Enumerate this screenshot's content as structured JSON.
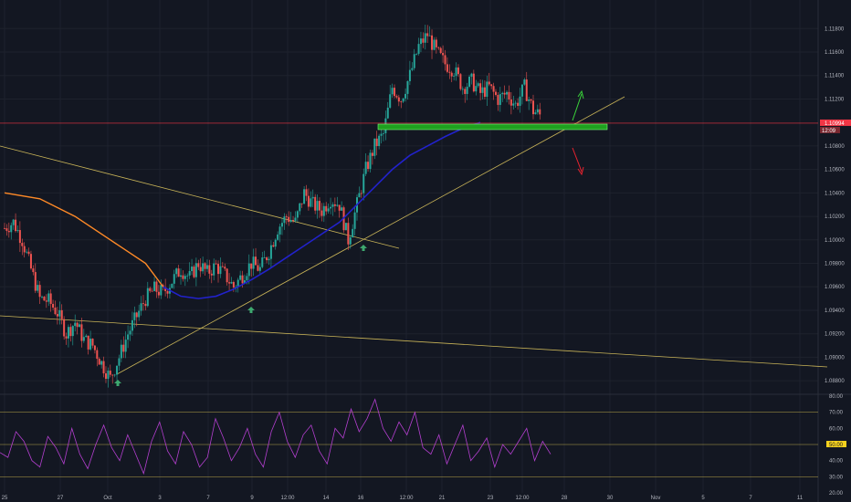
{
  "colors": {
    "background": "#131722",
    "grid": "#1e222d",
    "up_candle": "#26a69a",
    "down_candle": "#ef5350",
    "ma_orange": "#ff8a27",
    "ma_blue": "#2222cc",
    "trendline": "#c9b458",
    "support_zone": "#1fa01f",
    "support_zone_border": "#7cff7c",
    "current_price_line": "#f23645",
    "rsi_line": "#b43fd0",
    "rsi_level_line": "#b9a64a",
    "rsi_mid_badge": "#f5d11e",
    "up_arrow": "#3ad23a",
    "down_arrow": "#e8232f",
    "swing_marker": "#3ea86f"
  },
  "price_axis": {
    "labels": [
      "1.11800",
      "1.11600",
      "1.11400",
      "1.11200",
      "1.10800",
      "1.10600",
      "1.10400",
      "1.10200",
      "1.10000",
      "1.09800",
      "1.09600",
      "1.09400",
      "1.09200",
      "1.09000",
      "1.08800"
    ],
    "current_price": "1.10994",
    "countdown": "12:09"
  },
  "rsi_axis": {
    "labels": [
      "80.00",
      "70.00",
      "60.00",
      "40.00",
      "30.00",
      "20.00"
    ],
    "mid_label": "50.00"
  },
  "time_axis": {
    "labels": [
      "25",
      "27",
      "Oct",
      "3",
      "7",
      "9",
      "12:00",
      "14",
      "16",
      "12:00",
      "21",
      "23",
      "12:00",
      "28",
      "30",
      "Nov",
      "5",
      "7",
      "11"
    ]
  },
  "chart_data": [
    {
      "type": "line",
      "description_note": "",
      "x_unit": "trading day (EURUSD 4h candles, late Sep to mid Oct)",
      "y_axis": {
        "ylim": [
          1.087,
          1.1195
        ],
        "ticks": [
          1.088,
          1.09,
          1.092,
          1.094,
          1.096,
          1.098,
          1.1,
          1.102,
          1.104,
          1.106,
          1.108,
          1.112,
          1.114,
          1.116,
          1.118
        ]
      },
      "series": [
        {
          "style": "candles",
          "x": [
            0,
            0.5,
            1,
            1.5,
            2,
            2.5,
            3,
            3.5,
            4,
            4.5,
            5,
            5.5,
            6,
            6.5,
            7,
            7.5,
            8,
            8.5,
            9,
            9.5,
            10,
            10.5,
            11,
            11.5,
            12,
            12.5,
            13,
            13.5,
            14,
            14.5,
            15,
            15.5,
            16,
            16.5,
            17,
            17.5,
            18,
            18.5,
            19,
            19.5,
            20,
            20.5,
            21,
            21.5,
            22,
            22.5,
            23,
            23.5,
            24,
            24.5
          ],
          "values": [
            1.101,
            1.1015,
            1.1,
            1.0975,
            1.095,
            1.0948,
            1.0938,
            1.092,
            1.093,
            1.0915,
            1.091,
            1.0895,
            1.0882,
            1.09,
            1.092,
            1.0935,
            1.095,
            1.0958,
            1.0955,
            1.0965,
            1.0975,
            1.0968,
            1.098,
            1.0972,
            1.0978,
            1.097,
            1.096,
            1.097,
            1.098,
            1.0975,
            1.099,
            1.101,
            1.102,
            1.1015,
            1.104,
            1.103,
            1.1025,
            1.1035,
            1.103,
            1.1,
            1.103,
            1.106,
            1.108,
            1.109,
            1.113,
            1.112,
            1.114,
            1.1165,
            1.1175,
            1.116
          ]
        },
        {
          "style": "candles-continued",
          "x": [
            25,
            25.5,
            26,
            26.5,
            27,
            27.5,
            28,
            28.5,
            29,
            29.5,
            30,
            30.5
          ],
          "values": [
            1.115,
            1.1145,
            1.113,
            1.1135,
            1.1125,
            1.113,
            1.112,
            1.1125,
            1.1115,
            1.113,
            1.111,
            1.1105
          ]
        },
        {
          "style": "moving-average",
          "x": [
            0,
            2,
            4,
            6,
            8,
            9,
            10,
            11,
            12,
            13,
            14,
            15,
            16,
            17,
            18,
            19,
            20,
            21,
            22,
            23,
            24,
            25,
            26,
            27
          ],
          "values": [
            1.104,
            1.1035,
            1.102,
            1.1,
            1.098,
            1.096,
            1.0952,
            1.095,
            1.0952,
            1.0958,
            1.0966,
            1.0975,
            1.0985,
            1.0995,
            1.1005,
            1.1015,
            1.103,
            1.1045,
            1.106,
            1.1072,
            1.108,
            1.1088,
            1.1095,
            1.11
          ]
        }
      ],
      "support_zone": [
        1.1085,
        1.1092
      ],
      "current_price": 1.10994
    },
    {
      "type": "line",
      "indicator": "RSI",
      "ylim": [
        20,
        80
      ],
      "levels": [
        70,
        50,
        30
      ],
      "values": [
        45,
        42,
        58,
        52,
        40,
        36,
        55,
        48,
        38,
        60,
        44,
        35,
        50,
        62,
        48,
        40,
        56,
        44,
        32,
        52,
        64,
        46,
        38,
        58,
        50,
        36,
        42,
        66,
        54,
        40,
        48,
        60,
        44,
        36,
        58,
        70,
        52,
        42,
        56,
        62,
        46,
        38,
        60,
        54,
        72,
        58,
        66,
        78,
        60,
        52,
        64,
        56,
        70,
        48,
        44,
        56,
        38,
        50,
        62,
        40,
        46,
        54,
        36,
        50,
        44,
        52,
        60,
        40,
        52,
        44
      ]
    }
  ]
}
